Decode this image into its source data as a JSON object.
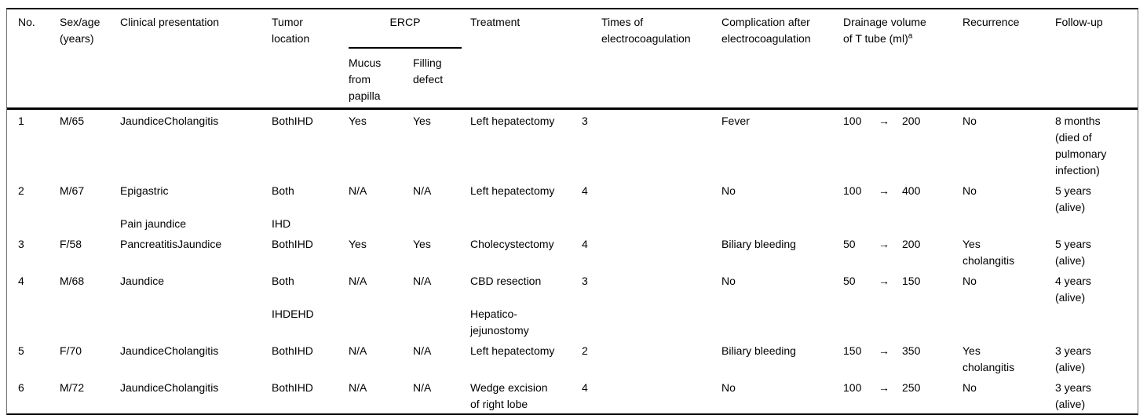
{
  "header": {
    "no": "No.",
    "sex_age": "Sex/age\n(years)",
    "clinical": "Clinical presentation",
    "tumor": "Tumor\nlocation",
    "ercp": "ERCP",
    "mucus": "Mucus\nfrom\npapilla",
    "filling": "Filling\ndefect",
    "treatment": "Treatment",
    "times": "Times of\nelectrocoagulation",
    "complication": "Complication after\nelectrocoagulation",
    "drainage": "Drainage volume\nof T tube (ml)",
    "drainage_footnote": "a",
    "recurrence": "Recurrence",
    "followup": "Follow-up"
  },
  "arrow": "→",
  "rows": [
    {
      "no": "1",
      "sex_age": "M/65",
      "clinical": "JaundiceCholangitis",
      "tumor": "BothIHD",
      "mucus": "Yes",
      "filling": "Yes",
      "treatment": "Left hepatectomy",
      "times": "3",
      "complication": "Fever",
      "drain_from": "100",
      "drain_to": "200",
      "recurrence": "No",
      "followup": "8 months\n(died of\npulmonary\ninfection)"
    },
    {
      "no": "2",
      "sex_age": "M/67",
      "clinical": "Epigastric\n\nPain jaundice",
      "tumor": "Both\n\nIHD",
      "mucus": "N/A",
      "filling": "N/A",
      "treatment": "Left hepatectomy",
      "times": "4",
      "complication": "No",
      "drain_from": "100",
      "drain_to": "400",
      "recurrence": "No",
      "followup": "5 years\n(alive)"
    },
    {
      "no": "3",
      "sex_age": "F/58",
      "clinical": "PancreatitisJaundice",
      "tumor": "BothIHD",
      "mucus": "Yes",
      "filling": "Yes",
      "treatment": "Cholecystectomy",
      "times": "4",
      "complication": "Biliary bleeding",
      "drain_from": "50",
      "drain_to": "200",
      "recurrence": "Yes\ncholangitis",
      "followup": "5 years\n(alive)"
    },
    {
      "no": "4",
      "sex_age": "M/68",
      "clinical": "Jaundice",
      "tumor": "Both\n\nIHDEHD",
      "mucus": "N/A",
      "filling": "N/A",
      "treatment": "CBD resection\n\nHepatico-\njejunostomy",
      "times": "3",
      "complication": "No",
      "drain_from": "50",
      "drain_to": "150",
      "recurrence": "No",
      "followup": "4 years\n(alive)"
    },
    {
      "no": "5",
      "sex_age": "F/70",
      "clinical": "JaundiceCholangitis",
      "tumor": "BothIHD",
      "mucus": "N/A",
      "filling": "N/A",
      "treatment": "Left hepatectomy",
      "times": "2",
      "complication": "Biliary bleeding",
      "drain_from": "150",
      "drain_to": "350",
      "recurrence": "Yes\ncholangitis",
      "followup": "3 years\n(alive)"
    },
    {
      "no": "6",
      "sex_age": "M/72",
      "clinical": "JaundiceCholangitis",
      "tumor": "BothIHD",
      "mucus": "N/A",
      "filling": "N/A",
      "treatment": "Wedge excision\nof right lobe",
      "times": "4",
      "complication": "No",
      "drain_from": "100",
      "drain_to": "250",
      "recurrence": "No",
      "followup": "3 years\n(alive)"
    }
  ]
}
